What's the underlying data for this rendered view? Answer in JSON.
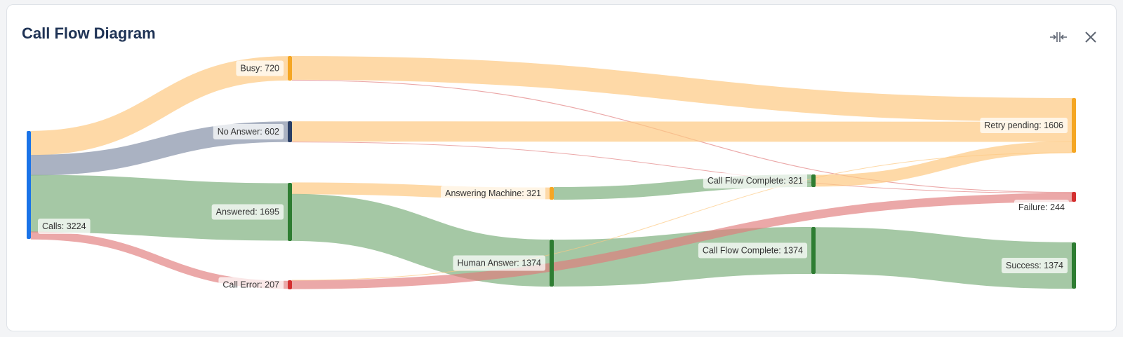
{
  "header": {
    "title": "Call Flow Diagram",
    "expand_icon": "collapse-horizontal-icon",
    "close_icon": "close-icon"
  },
  "colors": {
    "primary": "#1a73e8",
    "navy": "#2a3f66",
    "orange": "#f5a623",
    "green": "#2e7d32",
    "red": "#d32f2f",
    "link_orange": "#fdc982",
    "link_grey": "#8e98ae",
    "link_green": "#7fb17f",
    "link_red": "#e07a7a"
  },
  "nodes": [
    {
      "id": "calls",
      "label": "Calls: 3224",
      "color": "#1a73e8"
    },
    {
      "id": "busy",
      "label": "Busy: 720",
      "color": "#f5a623"
    },
    {
      "id": "no_answer",
      "label": "No Answer: 602",
      "color": "#2a3f66"
    },
    {
      "id": "answered",
      "label": "Answered: 1695",
      "color": "#2e7d32"
    },
    {
      "id": "call_error",
      "label": "Call Error: 207",
      "color": "#d32f2f"
    },
    {
      "id": "answering_machine",
      "label": "Answering Machine: 321",
      "color": "#f5a623"
    },
    {
      "id": "human_answer",
      "label": "Human Answer: 1374",
      "color": "#2e7d32"
    },
    {
      "id": "cfc_am",
      "label": "Call Flow Complete: 321",
      "color": "#2e7d32"
    },
    {
      "id": "cfc_human",
      "label": "Call Flow Complete: 1374",
      "color": "#2e7d32"
    },
    {
      "id": "retry",
      "label": "Retry pending: 1606",
      "color": "#f5a623"
    },
    {
      "id": "failure",
      "label": "Failure: 244",
      "color": "#d32f2f"
    },
    {
      "id": "success",
      "label": "Success: 1374",
      "color": "#2e7d32"
    }
  ],
  "links": [
    {
      "source": "calls",
      "target": "busy",
      "value": 720,
      "color": "orange"
    },
    {
      "source": "calls",
      "target": "no_answer",
      "value": 602,
      "color": "grey"
    },
    {
      "source": "calls",
      "target": "answered",
      "value": 1695,
      "color": "green"
    },
    {
      "source": "calls",
      "target": "call_error",
      "value": 207,
      "color": "red"
    },
    {
      "source": "busy",
      "target": "retry",
      "value": 698,
      "color": "orange"
    },
    {
      "source": "busy",
      "target": "failure",
      "value": 22,
      "color": "red"
    },
    {
      "source": "no_answer",
      "target": "retry",
      "value": 586,
      "color": "orange"
    },
    {
      "source": "no_answer",
      "target": "failure",
      "value": 16,
      "color": "red"
    },
    {
      "source": "answered",
      "target": "answering_machine",
      "value": 321,
      "color": "orange"
    },
    {
      "source": "answered",
      "target": "human_answer",
      "value": 1374,
      "color": "green"
    },
    {
      "source": "answering_machine",
      "target": "cfc_am",
      "value": 321,
      "color": "green"
    },
    {
      "source": "human_answer",
      "target": "cfc_human",
      "value": 1374,
      "color": "green"
    },
    {
      "source": "cfc_am",
      "target": "retry",
      "value": 321,
      "color": "orange"
    },
    {
      "source": "cfc_human",
      "target": "success",
      "value": 1374,
      "color": "green"
    },
    {
      "source": "call_error",
      "target": "retry",
      "value": 1,
      "color": "orange"
    },
    {
      "source": "call_error",
      "target": "failure",
      "value": 206,
      "color": "red"
    }
  ]
}
